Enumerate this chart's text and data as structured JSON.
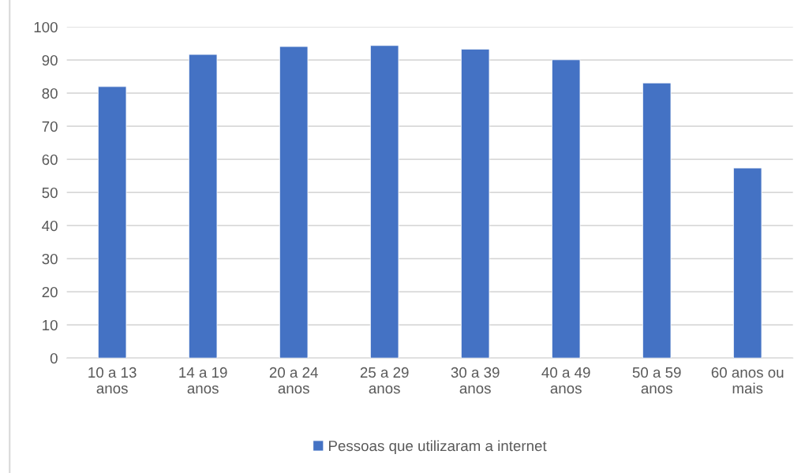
{
  "chart_data": {
    "type": "bar",
    "categories": [
      "10 a 13\nanos",
      "14 a 19\nanos",
      "20 a 24\nanos",
      "25 a 29\nanos",
      "30 a 39\nanos",
      "40 a 49\nanos",
      "50 a 59\nanos",
      "60 anos ou\nmais"
    ],
    "series": [
      {
        "name": "Pessoas que utilizaram a internet",
        "color": "#4472c4",
        "values": [
          82.0,
          91.7,
          94.1,
          94.4,
          93.3,
          90.1,
          83.1,
          57.4
        ]
      }
    ],
    "ylim": [
      0,
      100
    ],
    "yticks": [
      0,
      10,
      20,
      30,
      40,
      50,
      60,
      70,
      80,
      90,
      100
    ],
    "grid": "y",
    "legend": "bottom"
  }
}
